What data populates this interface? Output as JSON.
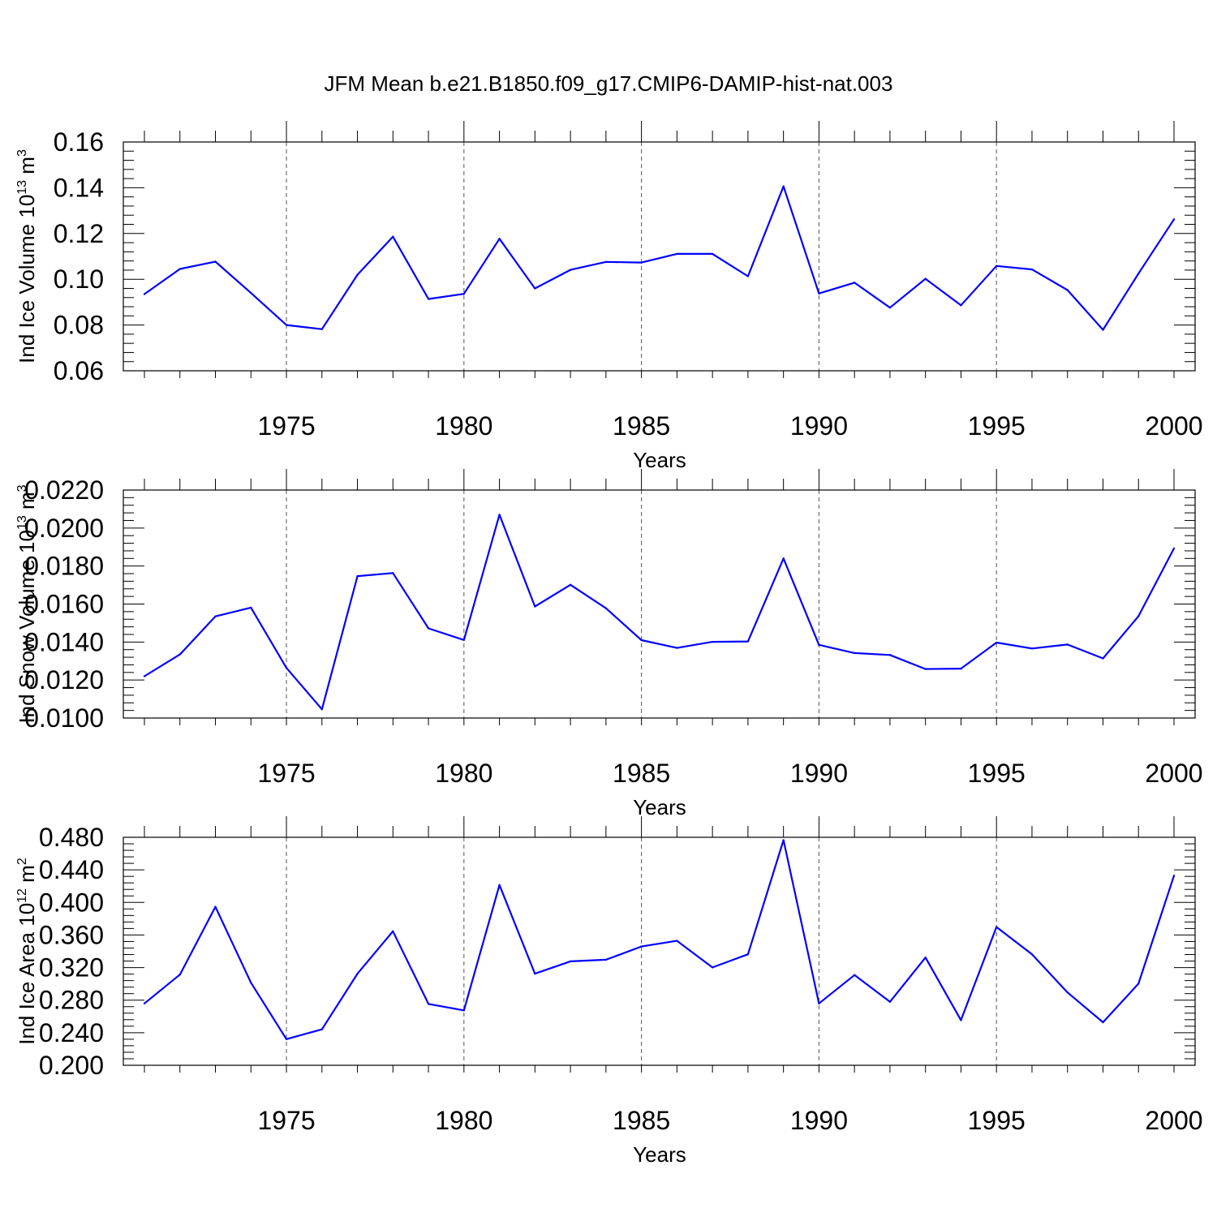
{
  "title": "JFM Mean b.e21.B1850.f09_g17.CMIP6-DAMIP-hist-nat.003",
  "chart_data": [
    {
      "type": "line",
      "ylabel": "Ind Ice Volume 10",
      "ylabel_exp": "13",
      "ylabel_unit": "m",
      "ylabel_unit_exp": "3",
      "xlabel": "Years",
      "xlim": [
        1971,
        2000
      ],
      "ylim": [
        0.06,
        0.16
      ],
      "yticks": [
        0.06,
        0.08,
        0.1,
        0.12,
        0.14,
        0.16
      ],
      "ytick_labels": [
        "0.06",
        "0.08",
        "0.10",
        "0.12",
        "0.14",
        "0.16"
      ],
      "xticks": [
        1975,
        1980,
        1985,
        1990,
        1995,
        2000
      ],
      "xtick_labels": [
        "1975",
        "1980",
        "1985",
        "1990",
        "1995",
        "2000"
      ],
      "grid": "vertical dashed at major x ticks",
      "color": "#0000ff",
      "x": [
        1971,
        1972,
        1973,
        1974,
        1975,
        1976,
        1977,
        1978,
        1979,
        1980,
        1981,
        1982,
        1983,
        1984,
        1985,
        1986,
        1987,
        1988,
        1989,
        1990,
        1991,
        1992,
        1993,
        1994,
        1995,
        1996,
        1997,
        1998,
        1999,
        2000
      ],
      "values": [
        0.0935,
        0.1045,
        0.1077,
        0.094,
        0.08,
        0.0782,
        0.102,
        0.1186,
        0.0914,
        0.0936,
        0.1177,
        0.096,
        0.1041,
        0.1076,
        0.1073,
        0.1111,
        0.1111,
        0.1013,
        0.1406,
        0.0938,
        0.0985,
        0.0876,
        0.1002,
        0.0886,
        0.1058,
        0.1043,
        0.0953,
        0.0779,
        0.1025,
        0.1262
      ]
    },
    {
      "type": "line",
      "ylabel": "Ind Snow Volume 10",
      "ylabel_exp": "13",
      "ylabel_unit": "m",
      "ylabel_unit_exp": "3",
      "xlabel": "Years",
      "xlim": [
        1971,
        2000
      ],
      "ylim": [
        0.01,
        0.022
      ],
      "yticks": [
        0.01,
        0.012,
        0.014,
        0.016,
        0.018,
        0.02,
        0.022
      ],
      "ytick_labels": [
        "0.0100",
        "0.0120",
        "0.0140",
        "0.0160",
        "0.0180",
        "0.0200",
        "0.0220"
      ],
      "xticks": [
        1975,
        1980,
        1985,
        1990,
        1995,
        2000
      ],
      "xtick_labels": [
        "1975",
        "1980",
        "1985",
        "1990",
        "1995",
        "2000"
      ],
      "grid": "vertical dashed at major x ticks",
      "color": "#0000ff",
      "x": [
        1971,
        1972,
        1973,
        1974,
        1975,
        1976,
        1977,
        1978,
        1979,
        1980,
        1981,
        1982,
        1983,
        1984,
        1985,
        1986,
        1987,
        1988,
        1989,
        1990,
        1991,
        1992,
        1993,
        1994,
        1995,
        1996,
        1997,
        1998,
        1999,
        2000
      ],
      "values": [
        0.0122,
        0.01335,
        0.01535,
        0.01581,
        0.01264,
        0.01046,
        0.01747,
        0.01763,
        0.01472,
        0.01411,
        0.0207,
        0.01587,
        0.01701,
        0.01578,
        0.0141,
        0.01369,
        0.01401,
        0.01403,
        0.0184,
        0.01385,
        0.01342,
        0.01332,
        0.01258,
        0.0126,
        0.01397,
        0.01366,
        0.01387,
        0.01314,
        0.01536,
        0.01893
      ]
    },
    {
      "type": "line",
      "ylabel": "Ind Ice Area 10",
      "ylabel_exp": "12",
      "ylabel_unit": "m",
      "ylabel_unit_exp": "2",
      "xlabel": "Years",
      "xlim": [
        1971,
        2000
      ],
      "ylim": [
        0.2,
        0.48
      ],
      "yticks": [
        0.2,
        0.24,
        0.28,
        0.32,
        0.36,
        0.4,
        0.44,
        0.48
      ],
      "ytick_labels": [
        "0.200",
        "0.240",
        "0.280",
        "0.320",
        "0.360",
        "0.400",
        "0.440",
        "0.480"
      ],
      "xticks": [
        1975,
        1980,
        1985,
        1990,
        1995,
        2000
      ],
      "xtick_labels": [
        "1975",
        "1980",
        "1985",
        "1990",
        "1995",
        "2000"
      ],
      "grid": "vertical dashed at major x ticks",
      "color": "#0000ff",
      "x": [
        1971,
        1972,
        1973,
        1974,
        1975,
        1976,
        1977,
        1978,
        1979,
        1980,
        1981,
        1982,
        1983,
        1984,
        1985,
        1986,
        1987,
        1988,
        1989,
        1990,
        1991,
        1992,
        1993,
        1994,
        1995,
        1996,
        1997,
        1998,
        1999,
        2000
      ],
      "values": [
        0.2759,
        0.3114,
        0.3946,
        0.3014,
        0.2321,
        0.2441,
        0.3125,
        0.3646,
        0.2753,
        0.2675,
        0.4214,
        0.3125,
        0.3276,
        0.3296,
        0.3459,
        0.3529,
        0.3202,
        0.3363,
        0.4765,
        0.2759,
        0.3108,
        0.2779,
        0.3323,
        0.2554,
        0.3698,
        0.3363,
        0.2895,
        0.2528,
        0.3002,
        0.4329
      ]
    }
  ]
}
